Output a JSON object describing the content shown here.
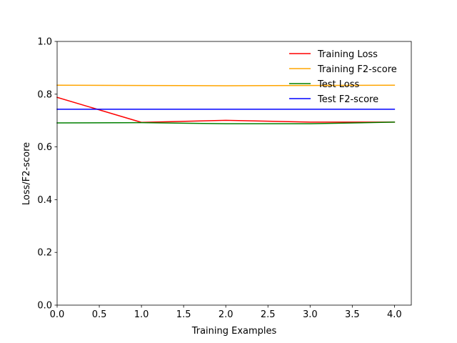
{
  "chart_data": {
    "type": "line",
    "title": "",
    "xlabel": "Training Examples",
    "ylabel": "Loss/F2-score",
    "xlim": [
      0,
      4.2
    ],
    "ylim": [
      0,
      1.0
    ],
    "xticks": [
      "0.0",
      "0.5",
      "1.0",
      "1.5",
      "2.0",
      "2.5",
      "3.0",
      "3.5",
      "4.0"
    ],
    "yticks": [
      "0.0",
      "0.2",
      "0.4",
      "0.6",
      "0.8",
      "1.0"
    ],
    "grid": false,
    "legend_position": "top-right",
    "x": [
      0,
      1,
      2,
      3,
      4
    ],
    "series": [
      {
        "name": "Training Loss",
        "color": "#ff0000",
        "values": [
          0.788,
          0.693,
          0.701,
          0.694,
          0.694
        ]
      },
      {
        "name": "Training F2-score",
        "color": "#ffa500",
        "values": [
          0.834,
          0.833,
          0.832,
          0.833,
          0.834
        ]
      },
      {
        "name": "Test Loss",
        "color": "#008000",
        "values": [
          0.691,
          0.692,
          0.688,
          0.688,
          0.694
        ]
      },
      {
        "name": "Test F2-score",
        "color": "#0000ff",
        "values": [
          0.743,
          0.743,
          0.743,
          0.743,
          0.743
        ]
      }
    ]
  }
}
